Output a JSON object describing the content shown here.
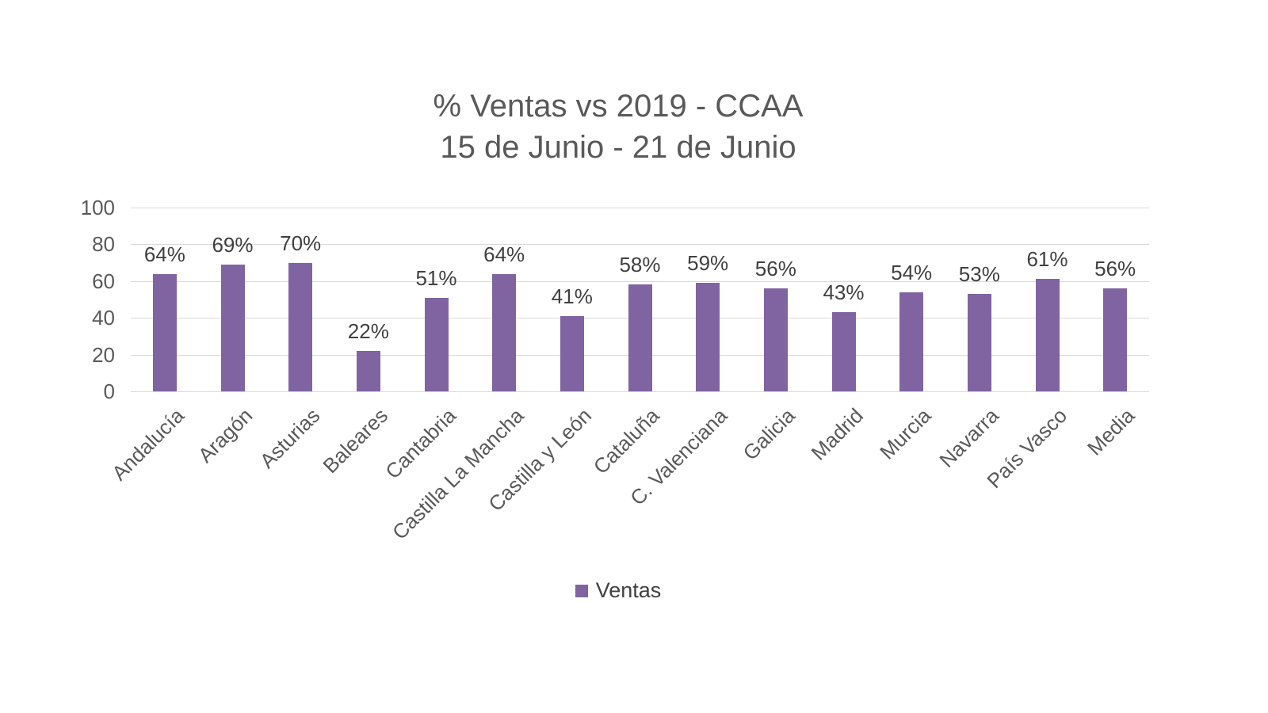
{
  "chart_data": {
    "type": "bar",
    "title": "% Ventas vs 2019 - CCAA",
    "subtitle": "15 de Junio - 21 de Junio",
    "categories": [
      "Andalucía",
      "Aragón",
      "Asturias",
      "Baleares",
      "Cantabria",
      "Castilla La Mancha",
      "Castilla y León",
      "Cataluña",
      "C. Valenciana",
      "Galicia",
      "Madrid",
      "Murcia",
      "Navarra",
      "País Vasco",
      "Media"
    ],
    "values": [
      64,
      69,
      70,
      22,
      51,
      64,
      41,
      58,
      59,
      56,
      43,
      54,
      53,
      61,
      56
    ],
    "data_labels": [
      "64%",
      "69%",
      "70%",
      "22%",
      "51%",
      "64%",
      "41%",
      "58%",
      "59%",
      "56%",
      "43%",
      "54%",
      "53%",
      "61%",
      "56%"
    ],
    "series_name": "Ventas",
    "ylabel": "",
    "xlabel": "",
    "ylim": [
      0,
      100
    ],
    "yticks": [
      0,
      20,
      40,
      60,
      80,
      100
    ],
    "grid": true,
    "legend_position": "bottom",
    "colors": {
      "bar": "#8064A2",
      "gridline": "#d9d9d9",
      "axis_text": "#595959",
      "label_text": "#404040"
    }
  }
}
